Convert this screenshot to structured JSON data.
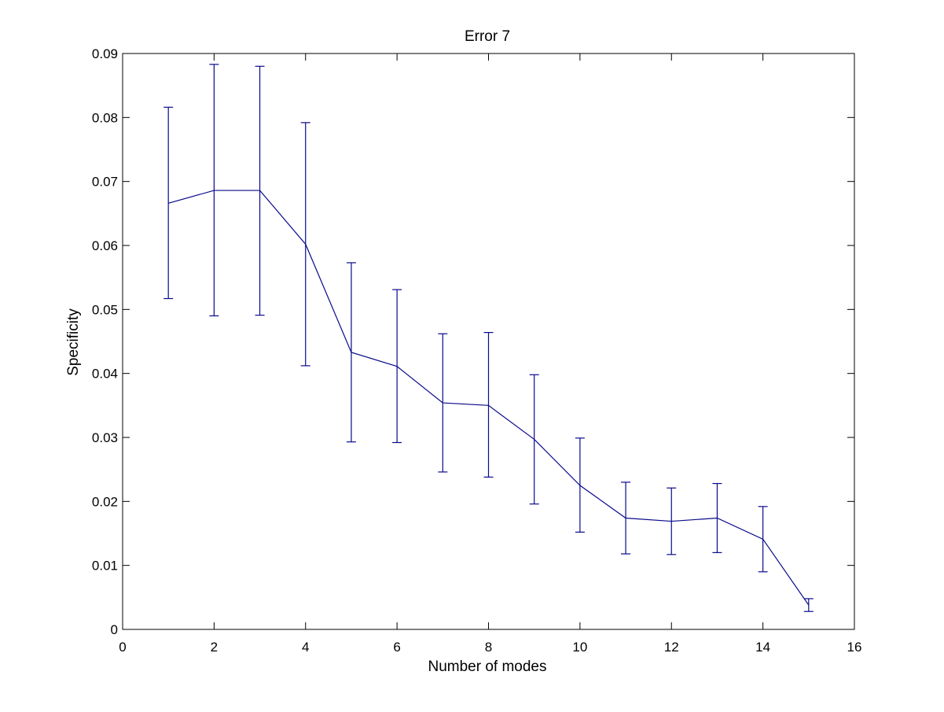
{
  "chart_data": {
    "type": "line",
    "title": "Error 7",
    "xlabel": "Number of modes",
    "ylabel": "Specificity",
    "xlim": [
      0,
      16
    ],
    "ylim": [
      0,
      0.09
    ],
    "xticks": [
      0,
      2,
      4,
      6,
      8,
      10,
      12,
      14,
      16
    ],
    "xtick_labels": [
      "0",
      "2",
      "4",
      "6",
      "8",
      "10",
      "12",
      "14",
      "16"
    ],
    "yticks": [
      0,
      0.01,
      0.02,
      0.03,
      0.04,
      0.05,
      0.06,
      0.07,
      0.08,
      0.09
    ],
    "ytick_labels": [
      "0",
      "0.01",
      "0.02",
      "0.03",
      "0.04",
      "0.05",
      "0.06",
      "0.07",
      "0.08",
      "0.09"
    ],
    "grid": false,
    "line_color": "#0a0a8c",
    "series": [
      {
        "x": [
          1,
          2,
          3,
          4,
          5,
          6,
          7,
          8,
          9,
          10,
          11,
          12,
          13,
          14,
          15
        ],
        "y": [
          0.0666,
          0.0686,
          0.0686,
          0.0602,
          0.0433,
          0.0411,
          0.0354,
          0.035,
          0.0297,
          0.0225,
          0.0174,
          0.0169,
          0.0174,
          0.0141,
          0.0038
        ],
        "err_low": [
          0.0517,
          0.049,
          0.0491,
          0.0412,
          0.0293,
          0.0292,
          0.0246,
          0.0238,
          0.0196,
          0.0152,
          0.0118,
          0.0117,
          0.012,
          0.009,
          0.0028
        ],
        "err_high": [
          0.0816,
          0.0883,
          0.088,
          0.0792,
          0.0573,
          0.0531,
          0.0462,
          0.0464,
          0.0398,
          0.0299,
          0.023,
          0.0221,
          0.0228,
          0.0192,
          0.0048
        ]
      }
    ]
  }
}
